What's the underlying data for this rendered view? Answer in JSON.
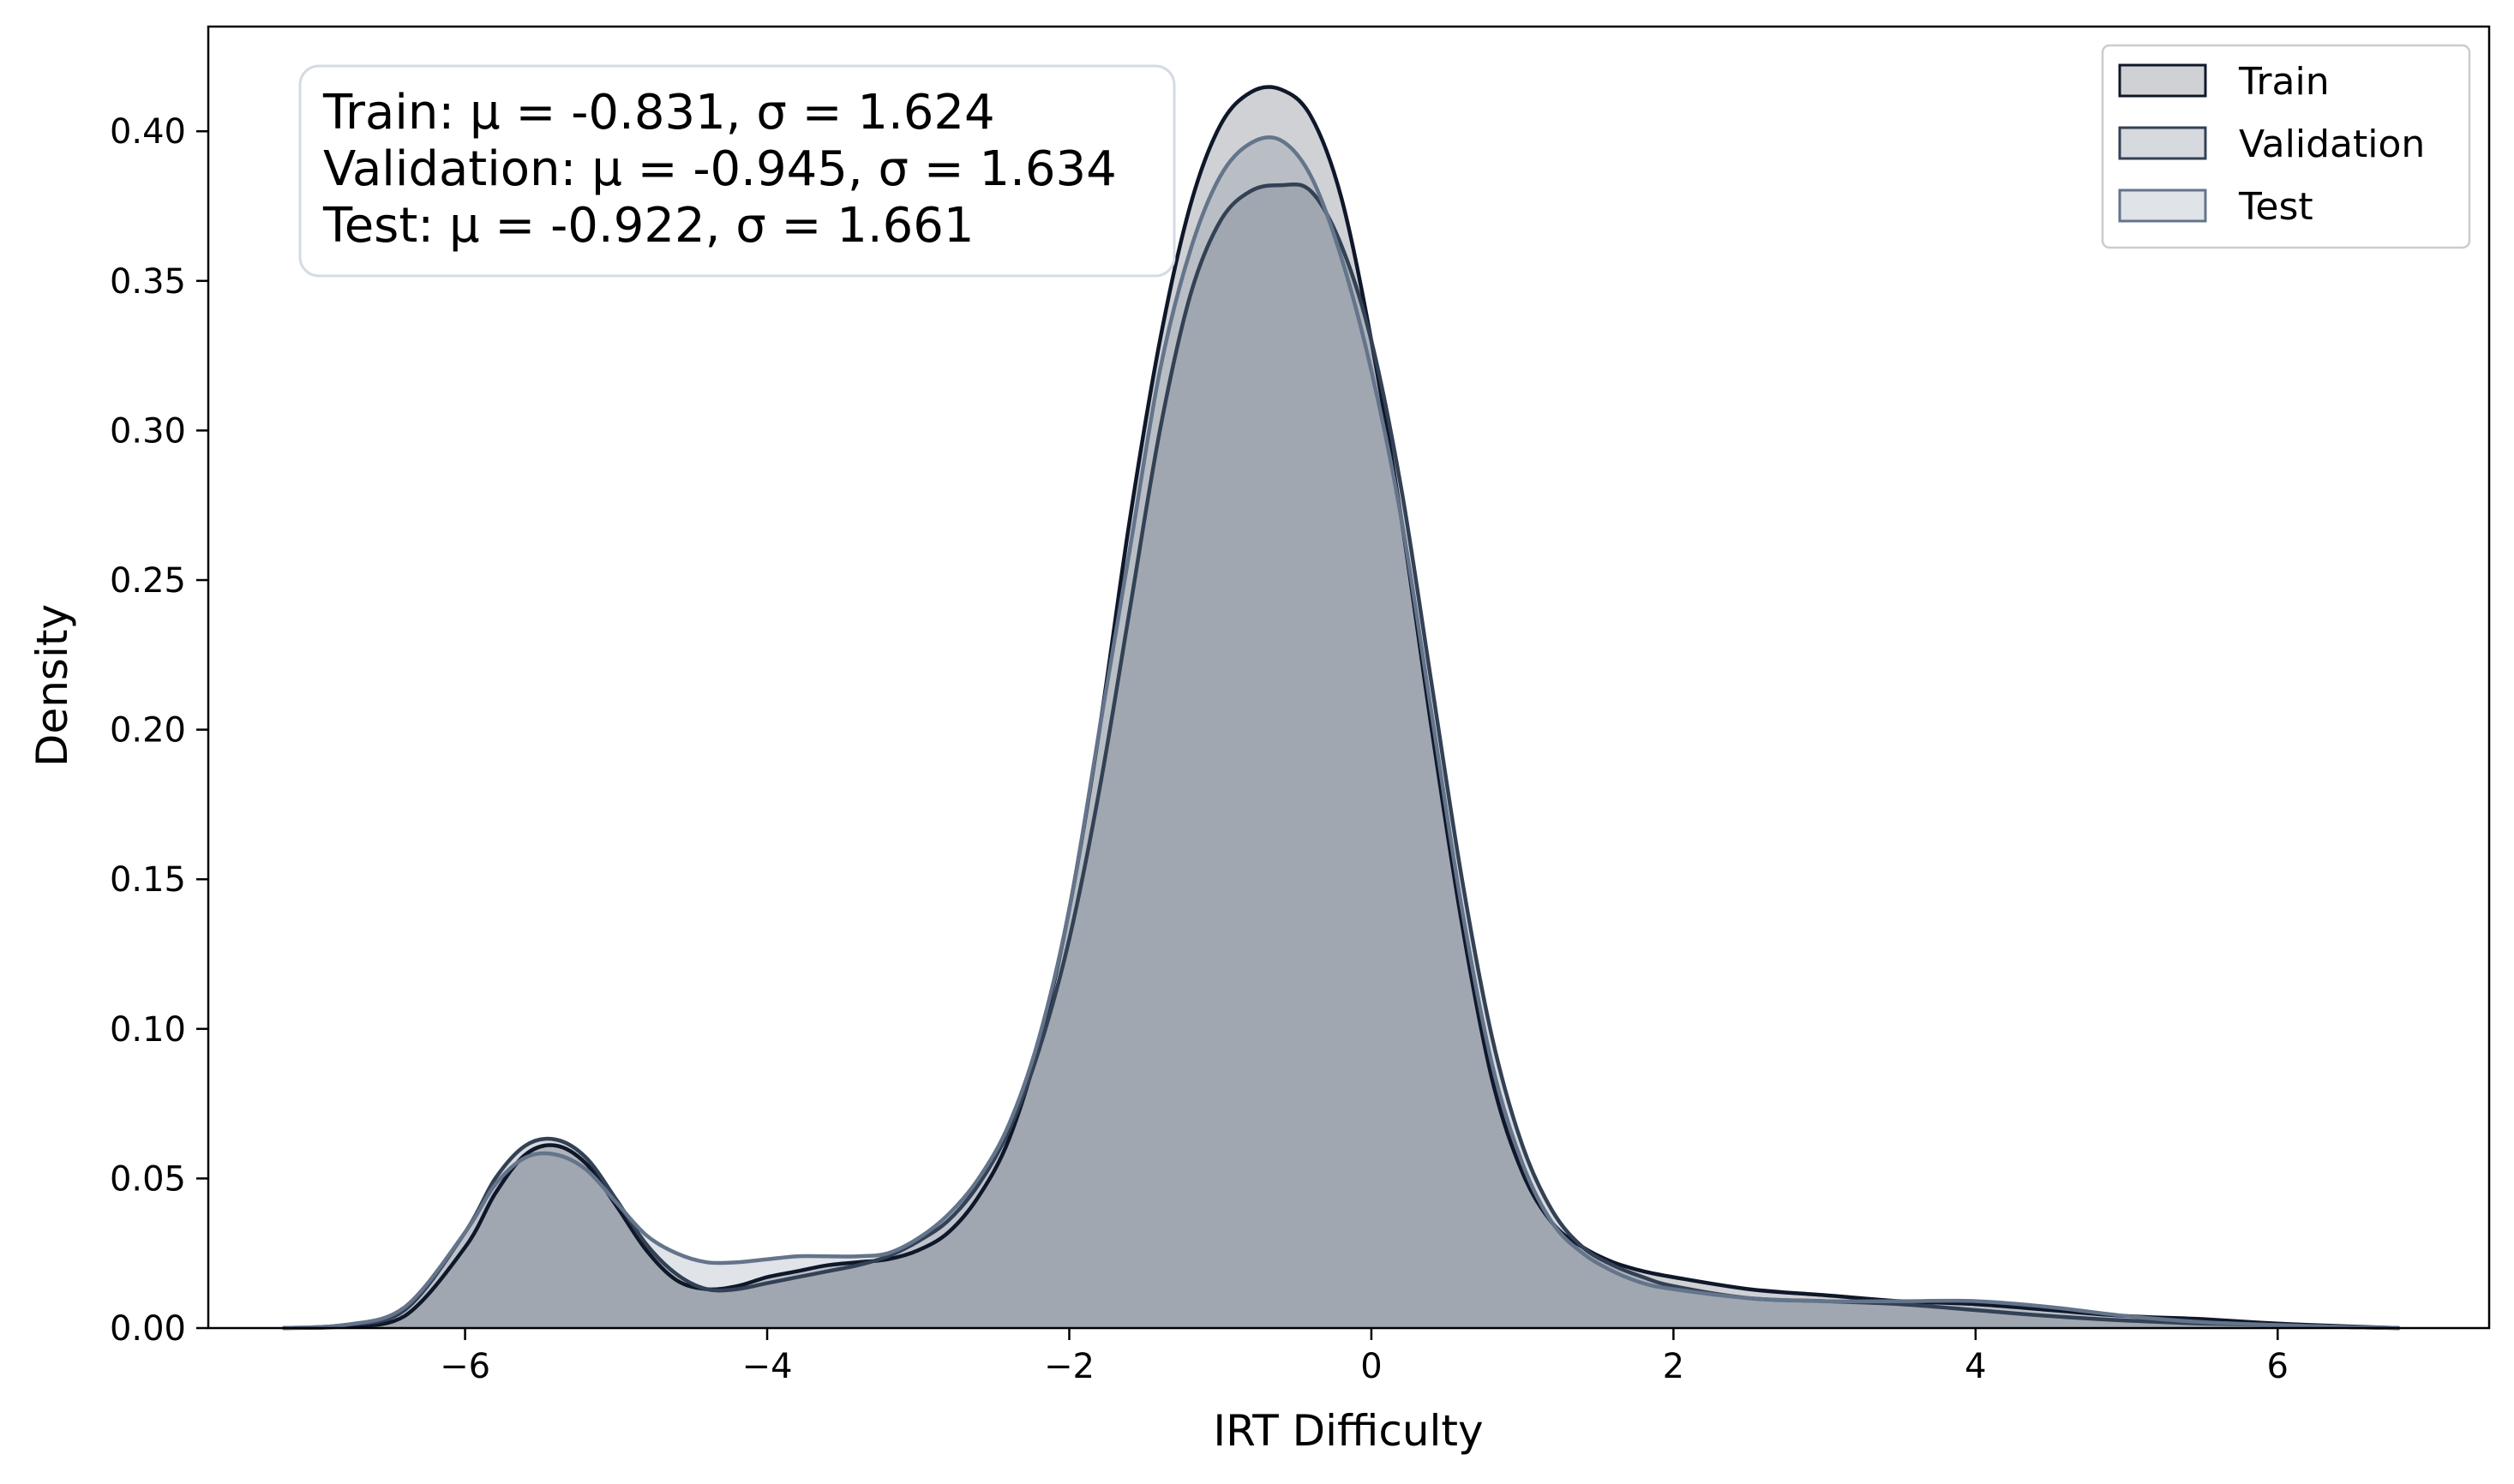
{
  "chart_data": {
    "type": "area",
    "title": "",
    "xlabel": "IRT Difficulty",
    "ylabel": "Density",
    "xlim": [
      -7.7,
      7.4
    ],
    "ylim": [
      0,
      0.435
    ],
    "x_ticks": [
      -6,
      -4,
      -2,
      0,
      2,
      4,
      6
    ],
    "x_tick_labels": [
      "−6",
      "−4",
      "−2",
      "0",
      "2",
      "4",
      "6"
    ],
    "y_ticks": [
      0,
      0.05,
      0.1,
      0.15,
      0.2,
      0.25,
      0.3,
      0.35,
      0.4
    ],
    "y_tick_labels": [
      "0.00",
      "0.05",
      "0.10",
      "0.15",
      "0.20",
      "0.25",
      "0.30",
      "0.35",
      "0.40"
    ],
    "grid": false,
    "legend_position": "top-right",
    "stats_box": {
      "lines": [
        "Train: μ = -0.831, σ = 1.624",
        "Validation: μ = -0.945, σ = 1.634",
        "Test: μ = -0.922, σ = 1.661"
      ]
    },
    "series": [
      {
        "name": "Train",
        "color": "#0f172a",
        "x": [
          -7.2,
          -6.8,
          -6.4,
          -6.0,
          -5.8,
          -5.6,
          -5.4,
          -5.2,
          -5.0,
          -4.8,
          -4.6,
          -4.4,
          -4.2,
          -4.0,
          -3.8,
          -3.6,
          -3.4,
          -3.2,
          -3.0,
          -2.8,
          -2.6,
          -2.4,
          -2.2,
          -2.0,
          -1.8,
          -1.6,
          -1.4,
          -1.2,
          -1.0,
          -0.8,
          -0.6,
          -0.4,
          -0.2,
          0.0,
          0.2,
          0.4,
          0.6,
          0.8,
          1.0,
          1.2,
          1.4,
          1.6,
          1.8,
          2.0,
          2.5,
          3.0,
          3.5,
          4.0,
          4.5,
          5.0,
          5.5,
          6.0,
          6.5,
          6.8
        ],
        "y": [
          0.0,
          0.0005,
          0.004,
          0.027,
          0.045,
          0.058,
          0.061,
          0.055,
          0.041,
          0.026,
          0.016,
          0.013,
          0.014,
          0.017,
          0.019,
          0.021,
          0.022,
          0.023,
          0.026,
          0.032,
          0.044,
          0.063,
          0.095,
          0.14,
          0.2,
          0.27,
          0.33,
          0.375,
          0.402,
          0.413,
          0.414,
          0.405,
          0.378,
          0.33,
          0.27,
          0.2,
          0.135,
          0.083,
          0.052,
          0.035,
          0.027,
          0.022,
          0.019,
          0.017,
          0.013,
          0.011,
          0.009,
          0.008,
          0.006,
          0.004,
          0.003,
          0.0015,
          0.0005,
          0.0
        ]
      },
      {
        "name": "Validation",
        "color": "#334155",
        "x": [
          -7.2,
          -6.8,
          -6.4,
          -6.0,
          -5.8,
          -5.6,
          -5.4,
          -5.2,
          -5.0,
          -4.8,
          -4.6,
          -4.4,
          -4.2,
          -4.0,
          -3.8,
          -3.6,
          -3.4,
          -3.2,
          -3.0,
          -2.8,
          -2.6,
          -2.4,
          -2.2,
          -2.0,
          -1.8,
          -1.6,
          -1.4,
          -1.2,
          -1.0,
          -0.8,
          -0.6,
          -0.4,
          -0.2,
          0.0,
          0.2,
          0.4,
          0.6,
          0.8,
          1.0,
          1.2,
          1.4,
          1.6,
          1.8,
          2.0,
          2.5,
          3.0,
          3.5,
          4.0,
          4.5,
          5.0,
          5.5,
          6.0,
          6.5,
          6.8
        ],
        "y": [
          0.0,
          0.001,
          0.006,
          0.032,
          0.05,
          0.061,
          0.063,
          0.057,
          0.043,
          0.028,
          0.018,
          0.013,
          0.013,
          0.015,
          0.017,
          0.019,
          0.021,
          0.024,
          0.029,
          0.036,
          0.048,
          0.066,
          0.093,
          0.13,
          0.18,
          0.24,
          0.3,
          0.345,
          0.37,
          0.38,
          0.382,
          0.38,
          0.362,
          0.33,
          0.28,
          0.215,
          0.15,
          0.097,
          0.061,
          0.039,
          0.027,
          0.021,
          0.017,
          0.014,
          0.01,
          0.009,
          0.008,
          0.006,
          0.004,
          0.0025,
          0.0015,
          0.001,
          0.0003,
          0.0
        ]
      },
      {
        "name": "Test",
        "color": "#64748b",
        "x": [
          -7.2,
          -6.8,
          -6.4,
          -6.0,
          -5.8,
          -5.6,
          -5.4,
          -5.2,
          -5.0,
          -4.8,
          -4.6,
          -4.4,
          -4.2,
          -4.0,
          -3.8,
          -3.6,
          -3.4,
          -3.2,
          -3.0,
          -2.8,
          -2.6,
          -2.4,
          -2.2,
          -2.0,
          -1.8,
          -1.6,
          -1.4,
          -1.2,
          -1.0,
          -0.8,
          -0.6,
          -0.4,
          -0.2,
          0.0,
          0.2,
          0.4,
          0.6,
          0.8,
          1.0,
          1.2,
          1.4,
          1.6,
          1.8,
          2.0,
          2.5,
          3.0,
          3.5,
          4.0,
          4.5,
          5.0,
          5.5,
          6.0,
          6.5,
          6.8
        ],
        "y": [
          0.0,
          0.001,
          0.007,
          0.032,
          0.048,
          0.057,
          0.058,
          0.053,
          0.042,
          0.031,
          0.025,
          0.022,
          0.022,
          0.023,
          0.024,
          0.024,
          0.024,
          0.025,
          0.03,
          0.038,
          0.05,
          0.068,
          0.097,
          0.14,
          0.2,
          0.26,
          0.32,
          0.36,
          0.385,
          0.396,
          0.397,
          0.385,
          0.358,
          0.32,
          0.27,
          0.205,
          0.14,
          0.088,
          0.055,
          0.035,
          0.025,
          0.019,
          0.015,
          0.013,
          0.01,
          0.009,
          0.009,
          0.009,
          0.007,
          0.004,
          0.002,
          0.001,
          0.0003,
          0.0
        ]
      }
    ]
  }
}
